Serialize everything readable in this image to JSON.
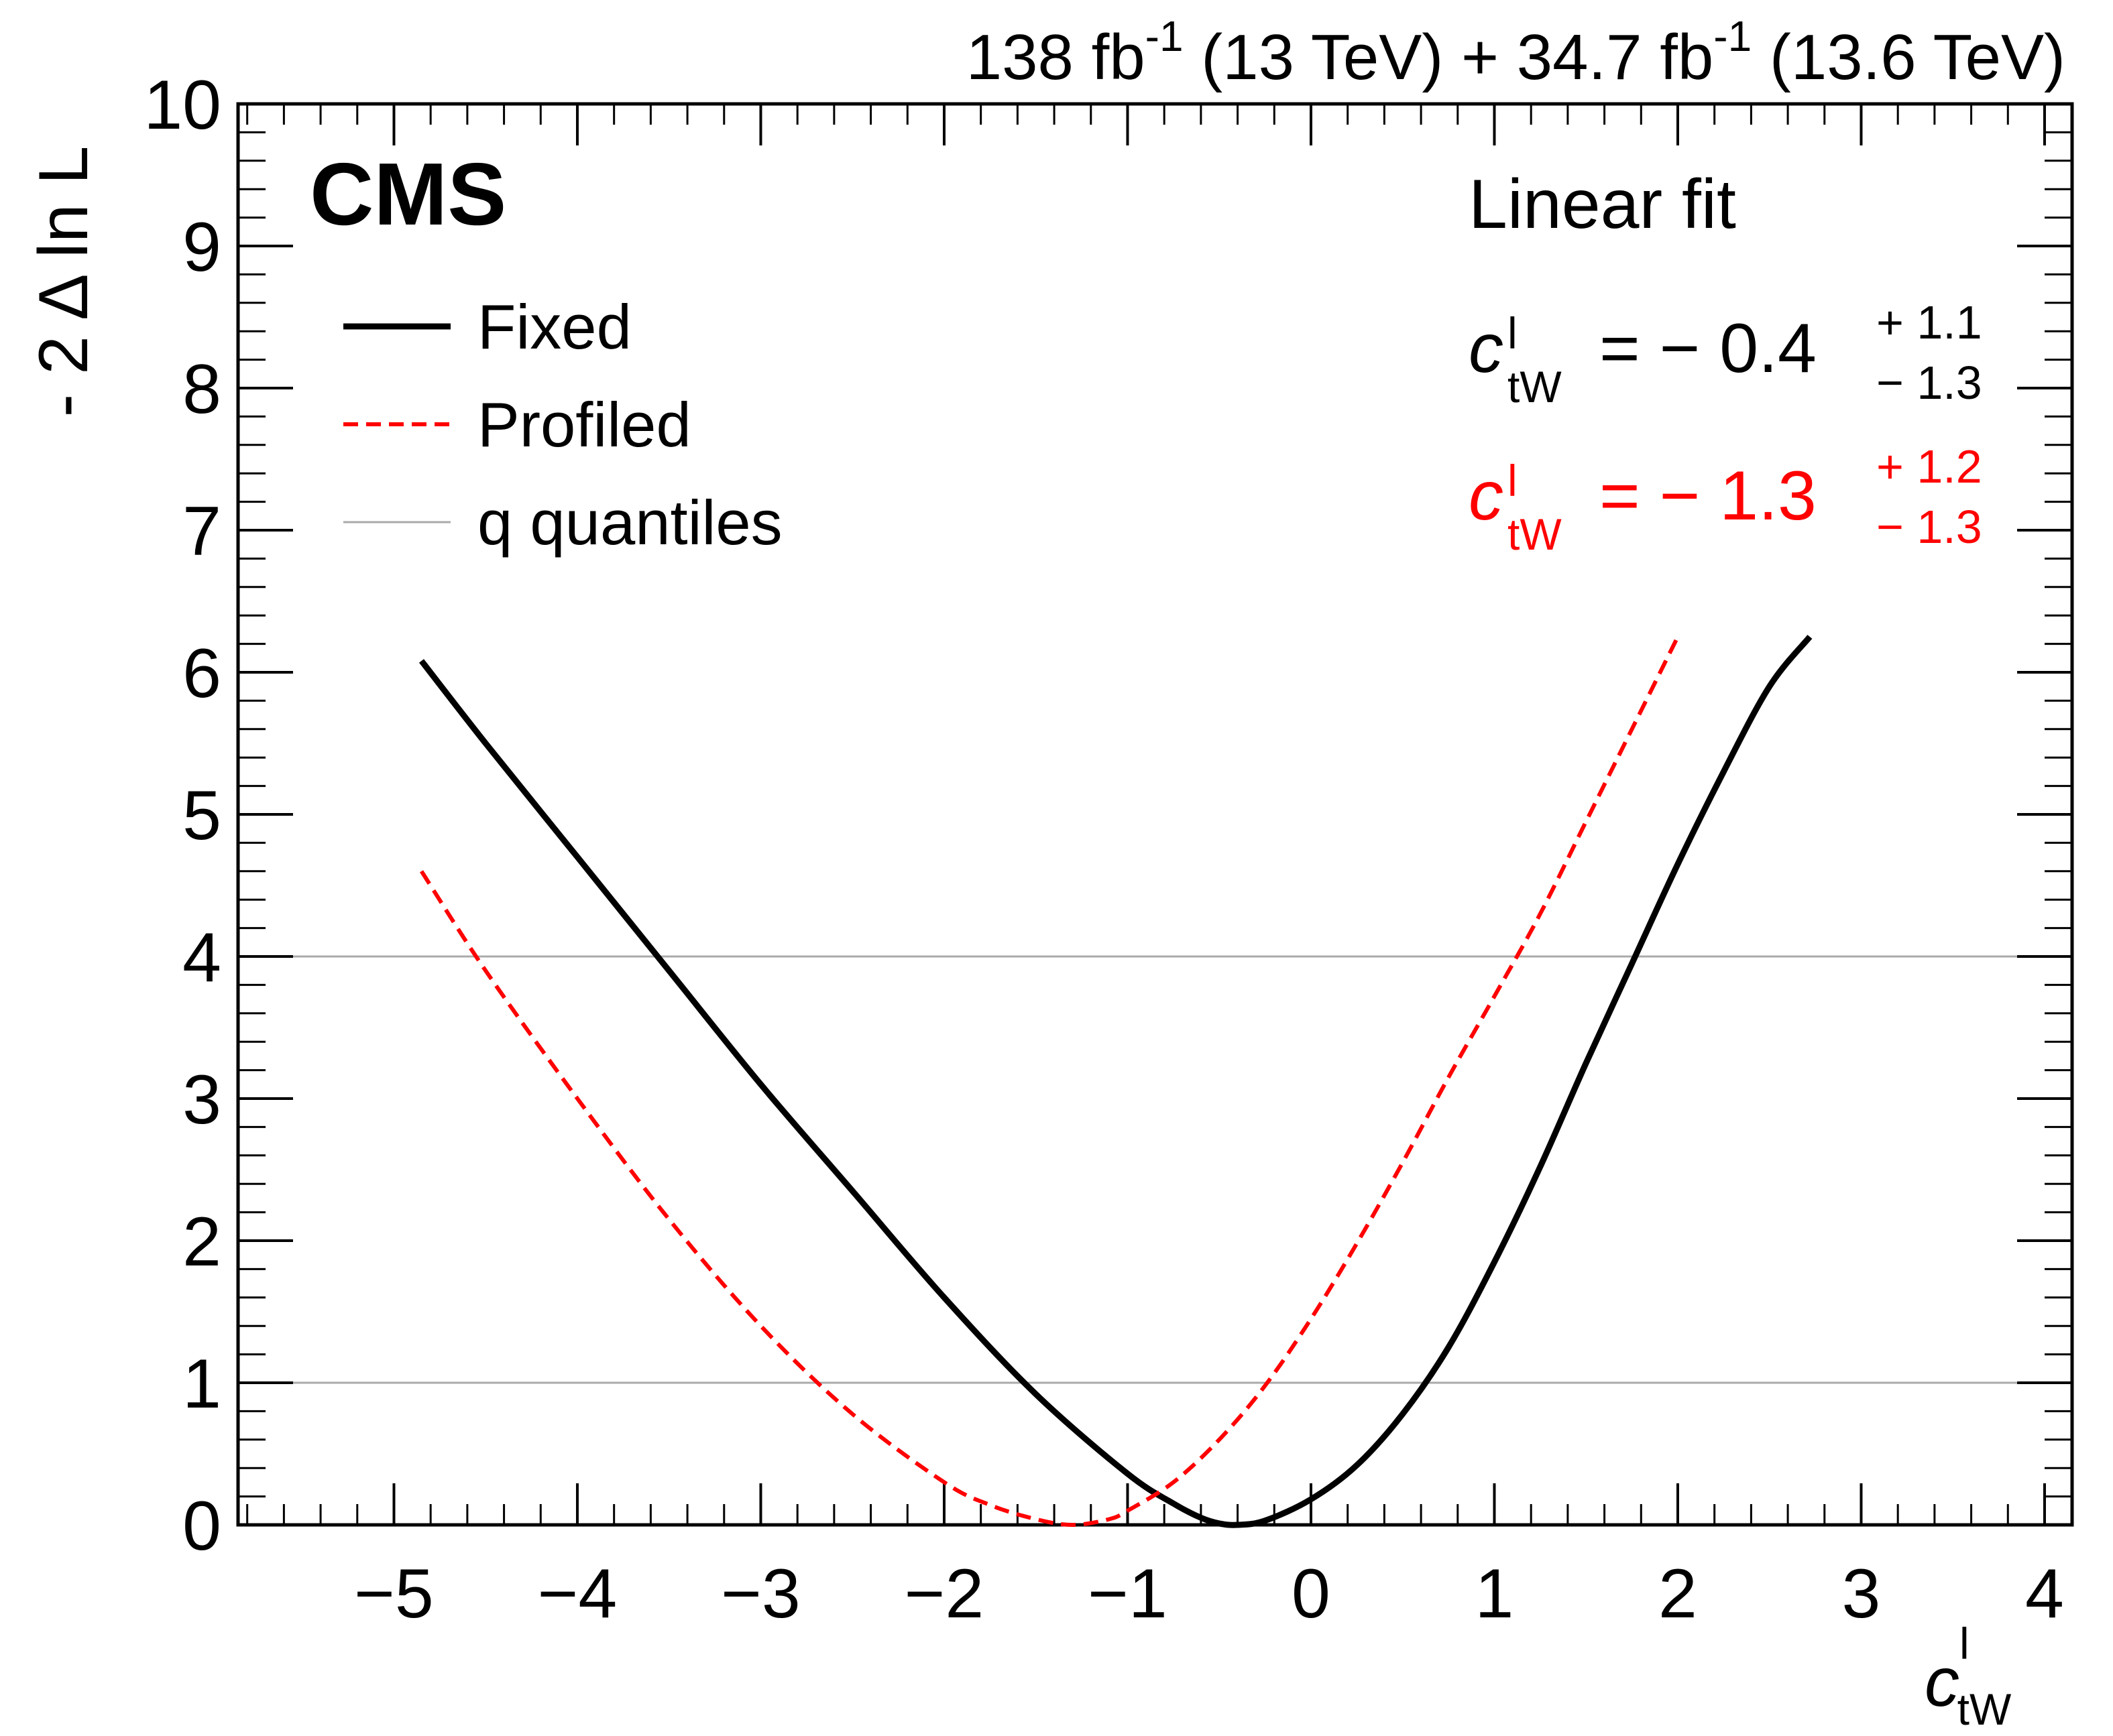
{
  "chart_data": {
    "type": "line",
    "lumi_text": {
      "part1": "138 fb",
      "sup1": "-1",
      "part2": " (13 TeV) + 34.7 fb",
      "sup2": "-1",
      "part3": " (13.6 TeV)"
    },
    "experiment_label": "CMS",
    "fit_label": "Linear fit",
    "xlabel": {
      "symbol": "c",
      "superscript": "l",
      "subscript": "tW"
    },
    "ylabel": "- 2 Δ ln L",
    "xlim": [
      -5.85,
      4.15
    ],
    "ylim": [
      0,
      10
    ],
    "xticks": [
      -5,
      -4,
      -3,
      -2,
      -1,
      0,
      1,
      2,
      3,
      4
    ],
    "xtick_labels": [
      "−5",
      "−4",
      "−3",
      "−2",
      "−1",
      "0",
      "1",
      "2",
      "3",
      "4"
    ],
    "yticks": [
      0,
      1,
      2,
      3,
      4,
      5,
      6,
      7,
      8,
      9,
      10
    ],
    "ytick_labels": [
      "0",
      "1",
      "2",
      "3",
      "4",
      "5",
      "6",
      "7",
      "8",
      "9",
      "10"
    ],
    "quantile_lines": [
      1,
      4
    ],
    "legend": {
      "placement": "top-left",
      "entries": [
        {
          "label": "Fixed",
          "style": "solid",
          "color": "#000000"
        },
        {
          "label": "Profiled",
          "style": "dashed",
          "color": "#ff0000"
        },
        {
          "label": "q quantiles",
          "style": "thin",
          "color": "#aaaaaa"
        }
      ]
    },
    "results": [
      {
        "symbol": "c",
        "superscript": "l",
        "subscript": "tW",
        "value": "= − 0.4",
        "plus": "+ 1.1",
        "minus": "− 1.3",
        "color": "#000000"
      },
      {
        "symbol": "c",
        "superscript": "l",
        "subscript": "tW",
        "value": "= − 1.3",
        "plus": "+ 1.2",
        "minus": "− 1.3",
        "color": "#ff0000"
      }
    ],
    "series": [
      {
        "name": "Fixed",
        "color": "#000000",
        "style": "solid",
        "x": [
          -4.85,
          -4.5,
          -4.0,
          -3.5,
          -3.0,
          -2.5,
          -2.0,
          -1.5,
          -1.0,
          -0.75,
          -0.6,
          -0.5,
          -0.4,
          -0.25,
          0.0,
          0.25,
          0.5,
          0.75,
          1.0,
          1.25,
          1.5,
          1.75,
          2.0,
          2.25,
          2.5,
          2.72
        ],
        "y": [
          6.08,
          5.5,
          4.7,
          3.9,
          3.1,
          2.35,
          1.6,
          0.92,
          0.36,
          0.15,
          0.05,
          0.01,
          0.0,
          0.03,
          0.18,
          0.42,
          0.78,
          1.25,
          1.85,
          2.52,
          3.25,
          3.95,
          4.65,
          5.3,
          5.9,
          6.25
        ]
      },
      {
        "name": "Profiled",
        "color": "#ff0000",
        "style": "dashed",
        "x": [
          -4.85,
          -4.5,
          -4.0,
          -3.5,
          -3.0,
          -2.5,
          -2.0,
          -1.75,
          -1.5,
          -1.3,
          -1.1,
          -1.0,
          -0.75,
          -0.5,
          -0.25,
          0.0,
          0.25,
          0.5,
          0.75,
          1.0,
          1.25,
          1.5,
          1.75,
          2.0
        ],
        "y": [
          4.6,
          3.9,
          3.0,
          2.15,
          1.4,
          0.78,
          0.3,
          0.14,
          0.04,
          0.0,
          0.04,
          0.1,
          0.3,
          0.6,
          0.98,
          1.45,
          1.98,
          2.55,
          3.15,
          3.72,
          4.3,
          4.95,
          5.6,
          6.25
        ]
      }
    ]
  }
}
